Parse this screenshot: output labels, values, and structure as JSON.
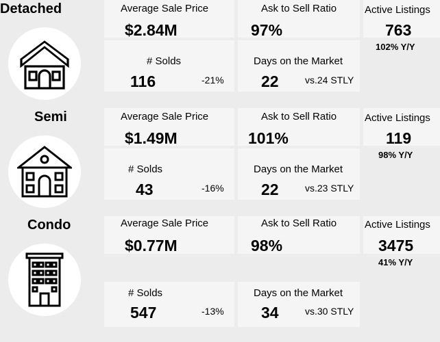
{
  "sections": [
    {
      "title": "Detached",
      "icon": "detached-house-icon",
      "avg_price_label": "Average Sale Price",
      "avg_price": "$2.84M",
      "ask_sell_label": "Ask to Sell Ratio",
      "ask_sell": "97%",
      "active_label": "Active Listings",
      "active": "763",
      "active_yoy": "102% Y/Y",
      "solds_label": "# Solds",
      "solds": "116",
      "solds_change": "-21%",
      "dom_label": "Days on the Market",
      "dom": "22",
      "dom_stly": "vs.24 STLY"
    },
    {
      "title": "Semi",
      "icon": "semi-house-icon",
      "avg_price_label": "Average Sale Price",
      "avg_price": "$1.49M",
      "ask_sell_label": "Ask to Sell Ratio",
      "ask_sell": "101%",
      "active_label": "Active Listings",
      "active": "119",
      "active_yoy": "98% Y/Y",
      "solds_label": "# Solds",
      "solds": "43",
      "solds_change": "-16%",
      "dom_label": "Days on the Market",
      "dom": "22",
      "dom_stly": "vs.23 STLY"
    },
    {
      "title": "Condo",
      "icon": "condo-building-icon",
      "avg_price_label": "Average Sale Price",
      "avg_price": "$0.77M",
      "ask_sell_label": "Ask to Sell Ratio",
      "ask_sell": "98%",
      "active_label": "Active Listings",
      "active": "3475",
      "active_yoy": "41% Y/Y",
      "solds_label": "# Solds",
      "solds": "547",
      "solds_change": "-13%",
      "dom_label": "Days on the Market",
      "dom": "34",
      "dom_stly": "vs.30 STLY"
    }
  ]
}
